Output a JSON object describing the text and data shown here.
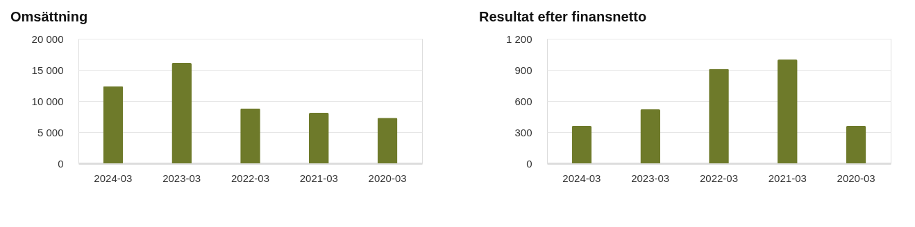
{
  "chart_data": [
    {
      "type": "bar",
      "title": "Omsättning",
      "categories": [
        "2024-03",
        "2023-03",
        "2022-03",
        "2021-03",
        "2020-03"
      ],
      "series": [
        {
          "color": "#6e7a2a",
          "values": [
            12400,
            16100,
            8800,
            8100,
            7300
          ]
        }
      ],
      "ylim": [
        0,
        20000
      ],
      "yticks": [
        0,
        {
          "value": 5000,
          "label": "5 000"
        },
        {
          "value": 10000,
          "label": "10 000"
        },
        {
          "value": 15000,
          "label": "15 000"
        },
        {
          "value": 20000,
          "label": "20 000"
        }
      ],
      "grid": "y"
    },
    {
      "type": "bar",
      "title": "Resultat efter finansnetto",
      "categories": [
        "2024-03",
        "2023-03",
        "2022-03",
        "2021-03",
        "2020-03"
      ],
      "series": [
        {
          "color": "#6e7a2a",
          "values": [
            360,
            520,
            910,
            1000,
            360
          ]
        }
      ],
      "ylim": [
        0,
        1200
      ],
      "yticks": [
        0,
        300,
        600,
        900,
        {
          "value": 1200,
          "label": "1 200"
        }
      ],
      "grid": "y"
    }
  ]
}
